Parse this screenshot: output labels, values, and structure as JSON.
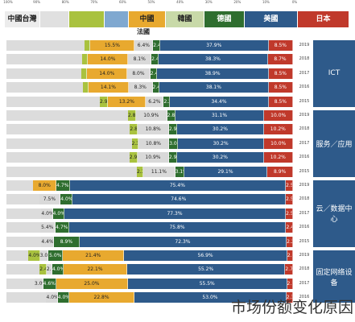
{
  "caption": "市场份额变化原因",
  "colors": {
    "japan": "#c0392b",
    "us": "#2e5a8a",
    "korea": "#2f6e2f",
    "china": "#e8a92f",
    "germany": "#a9c23f",
    "other": "#d9d9d9"
  },
  "legend": [
    {
      "key": "taiwan",
      "label": "中國台灣",
      "color": "#ececec"
    },
    {
      "key": "other2",
      "label": "",
      "color": "#e0e0e0"
    },
    {
      "key": "germany",
      "label": "",
      "color": "#a9c23f"
    },
    {
      "key": "other3",
      "label": "",
      "color": "#7fa8d0"
    },
    {
      "key": "china",
      "label": "中國",
      "color": "#e8a92f"
    },
    {
      "key": "korea",
      "label": "韓國",
      "color": "#c8d9a8"
    },
    {
      "key": "korea2",
      "label": "德國",
      "color": "#2f6e2f"
    },
    {
      "key": "us",
      "label": "美國",
      "color": "#2e5a8a"
    },
    {
      "key": "japan",
      "label": "日本",
      "color": "#c0392b"
    }
  ],
  "legend_second_line": "法國",
  "chart_data": {
    "type": "bar",
    "orientation": "horizontal",
    "stacked": true,
    "xlim": [
      0,
      100
    ],
    "x_ticks": [
      "100%",
      "90%",
      "80%",
      "70%",
      "60%",
      "50%",
      "40%",
      "30%",
      "20%",
      "10%",
      "0%"
    ],
    "categories": [
      "2019",
      "2018",
      "2017",
      "2016",
      "2015",
      "2019",
      "2018",
      "2017",
      "2016",
      "2015",
      "2019",
      "2018",
      "2017",
      "2016",
      "2015",
      "2019",
      "2018",
      "2017",
      "2016"
    ],
    "sections": [
      {
        "label": "ICT",
        "from": 0,
        "to": 4
      },
      {
        "label": "服务／应用",
        "from": 5,
        "to": 9
      },
      {
        "label": "云／数据中心",
        "from": 10,
        "to": 14
      },
      {
        "label": "固定网络设备",
        "from": 15,
        "to": 18
      }
    ],
    "rows": [
      {
        "year": "2019",
        "segs": [
          [
            "japan",
            8.5,
            "8.5%"
          ],
          [
            "us",
            37.9,
            "37.9%"
          ],
          [
            "korea",
            2.4,
            "2.4%"
          ],
          [
            "other",
            6.4,
            "6.4%"
          ],
          [
            "china",
            15.5,
            "15.5%"
          ],
          [
            "germany",
            2.0,
            ""
          ]
        ]
      },
      {
        "year": "2018",
        "segs": [
          [
            "japan",
            8.7,
            "8.7%"
          ],
          [
            "us",
            38.3,
            "38.3%"
          ],
          [
            "korea",
            2.4,
            "2.4%"
          ],
          [
            "other",
            8.1,
            "8.1%"
          ],
          [
            "china",
            14.0,
            "14.0%"
          ],
          [
            "germany",
            2.0,
            ""
          ]
        ]
      },
      {
        "year": "2017",
        "segs": [
          [
            "japan",
            8.5,
            "8.5%"
          ],
          [
            "us",
            38.9,
            "38.9%"
          ],
          [
            "korea",
            2.4,
            "2.4%"
          ],
          [
            "other",
            8.0,
            "8.0%"
          ],
          [
            "china",
            14.0,
            "14.0%"
          ],
          [
            "germany",
            2.0,
            ""
          ]
        ]
      },
      {
        "year": "2016",
        "segs": [
          [
            "japan",
            8.5,
            "8.5%"
          ],
          [
            "us",
            38.1,
            "38.1%"
          ],
          [
            "korea",
            2.4,
            "2.4%"
          ],
          [
            "other",
            8.3,
            "8.3%"
          ],
          [
            "china",
            14.1,
            "14.1%"
          ],
          [
            "germany",
            2.0,
            ""
          ]
        ]
      },
      {
        "year": "2015",
        "segs": [
          [
            "japan",
            8.5,
            "8.5%"
          ],
          [
            "us",
            34.4,
            "34.4%"
          ],
          [
            "korea",
            2.2,
            "2.2%"
          ],
          [
            "other",
            6.2,
            "6.2%"
          ],
          [
            "china",
            13.2,
            "13.2%"
          ],
          [
            "germany",
            2.9,
            "2.9%"
          ]
        ]
      },
      {
        "year": "2019",
        "segs": [
          [
            "japan",
            10.0,
            "10.0%"
          ],
          [
            "us",
            31.1,
            "31.1%"
          ],
          [
            "korea",
            2.8,
            "2.8%"
          ],
          [
            "other",
            10.9,
            "10.9%"
          ],
          [
            "germany",
            2.8,
            "2.8%"
          ]
        ]
      },
      {
        "year": "2018",
        "segs": [
          [
            "japan",
            10.2,
            "10.2%"
          ],
          [
            "us",
            30.2,
            "30.2%"
          ],
          [
            "korea",
            2.9,
            "2.9%"
          ],
          [
            "other",
            10.8,
            "10.8%"
          ],
          [
            "germany",
            2.8,
            "2.8%"
          ]
        ]
      },
      {
        "year": "2017",
        "segs": [
          [
            "japan",
            10.0,
            "10.0%"
          ],
          [
            "us",
            30.2,
            "30.2%"
          ],
          [
            "korea",
            3.0,
            "3.0%"
          ],
          [
            "other",
            10.8,
            "10.8%"
          ],
          [
            "germany",
            2.3,
            "2.3%"
          ]
        ]
      },
      {
        "year": "2016",
        "segs": [
          [
            "japan",
            10.2,
            "10.2%"
          ],
          [
            "us",
            30.2,
            "30.2%"
          ],
          [
            "korea",
            2.9,
            "2.9%"
          ],
          [
            "other",
            10.9,
            "10.9%"
          ],
          [
            "germany",
            2.9,
            "2.9%"
          ]
        ]
      },
      {
        "year": "2015",
        "segs": [
          [
            "japan",
            8.9,
            "8.9%"
          ],
          [
            "us",
            29.1,
            "29.1%"
          ],
          [
            "korea",
            3.1,
            "3.1%"
          ],
          [
            "other",
            11.1,
            "11.1%"
          ],
          [
            "germany",
            2.3,
            "2.3%"
          ]
        ]
      },
      {
        "year": "2019",
        "segs": [
          [
            "japan",
            2.5,
            "2.5%"
          ],
          [
            "us",
            75.4,
            "75.4%"
          ],
          [
            "korea",
            4.7,
            "4.7%"
          ],
          [
            "china",
            8.0,
            "8.0%"
          ]
        ]
      },
      {
        "year": "2018",
        "segs": [
          [
            "japan",
            2.5,
            "2.5%"
          ],
          [
            "us",
            74.6,
            "74.6%"
          ],
          [
            "korea",
            4.0,
            "4.0%"
          ],
          [
            "other",
            7.5,
            "7.5%"
          ]
        ]
      },
      {
        "year": "2017",
        "segs": [
          [
            "japan",
            2.5,
            "2.5%"
          ],
          [
            "us",
            77.3,
            "77.3%"
          ],
          [
            "korea",
            4.0,
            "4.0%"
          ],
          [
            "other",
            4.0,
            "4.0%"
          ]
        ]
      },
      {
        "year": "2016",
        "segs": [
          [
            "japan",
            2.4,
            "2.4%"
          ],
          [
            "us",
            75.8,
            "75.8%"
          ],
          [
            "korea",
            4.7,
            "4.7%"
          ],
          [
            "other",
            5.4,
            "5.4%"
          ]
        ]
      },
      {
        "year": "2015",
        "segs": [
          [
            "japan",
            2.2,
            "2.2%"
          ],
          [
            "us",
            72.3,
            "72.3%"
          ],
          [
            "korea",
            8.9,
            "8.9%"
          ],
          [
            "other",
            4.4,
            "4.4%"
          ]
        ]
      },
      {
        "year": "2019",
        "segs": [
          [
            "japan",
            2.0,
            "2.0%"
          ],
          [
            "us",
            56.9,
            "56.9%"
          ],
          [
            "china",
            21.4,
            "21.4%"
          ],
          [
            "korea",
            5.0,
            "5.0%"
          ],
          [
            "other",
            3.0,
            "3.0%"
          ],
          [
            "germany",
            4.0,
            "4.0%"
          ]
        ]
      },
      {
        "year": "2018",
        "segs": [
          [
            "japan",
            2.7,
            "2.7%"
          ],
          [
            "us",
            55.2,
            "55.2%"
          ],
          [
            "china",
            22.1,
            "22.1%"
          ],
          [
            "korea",
            4.0,
            "4.0%"
          ],
          [
            "other",
            2.0,
            "2.0%"
          ],
          [
            "germany",
            2.4,
            "2.4%"
          ]
        ]
      },
      {
        "year": "2017",
        "segs": [
          [
            "japan",
            2.1,
            "2.1%"
          ],
          [
            "us",
            55.5,
            "55.5%"
          ],
          [
            "china",
            25.0,
            "25.0%"
          ],
          [
            "korea",
            4.6,
            "4.6%"
          ],
          [
            "other",
            3.0,
            "3.0%"
          ]
        ]
      },
      {
        "year": "2016",
        "segs": [
          [
            "japan",
            2.3,
            "2.3%"
          ],
          [
            "us",
            53.0,
            "53.0%"
          ],
          [
            "china",
            22.8,
            "22.8%"
          ],
          [
            "korea",
            4.0,
            "4.0%"
          ],
          [
            "other",
            4.0,
            "4.0%"
          ]
        ]
      }
    ]
  }
}
